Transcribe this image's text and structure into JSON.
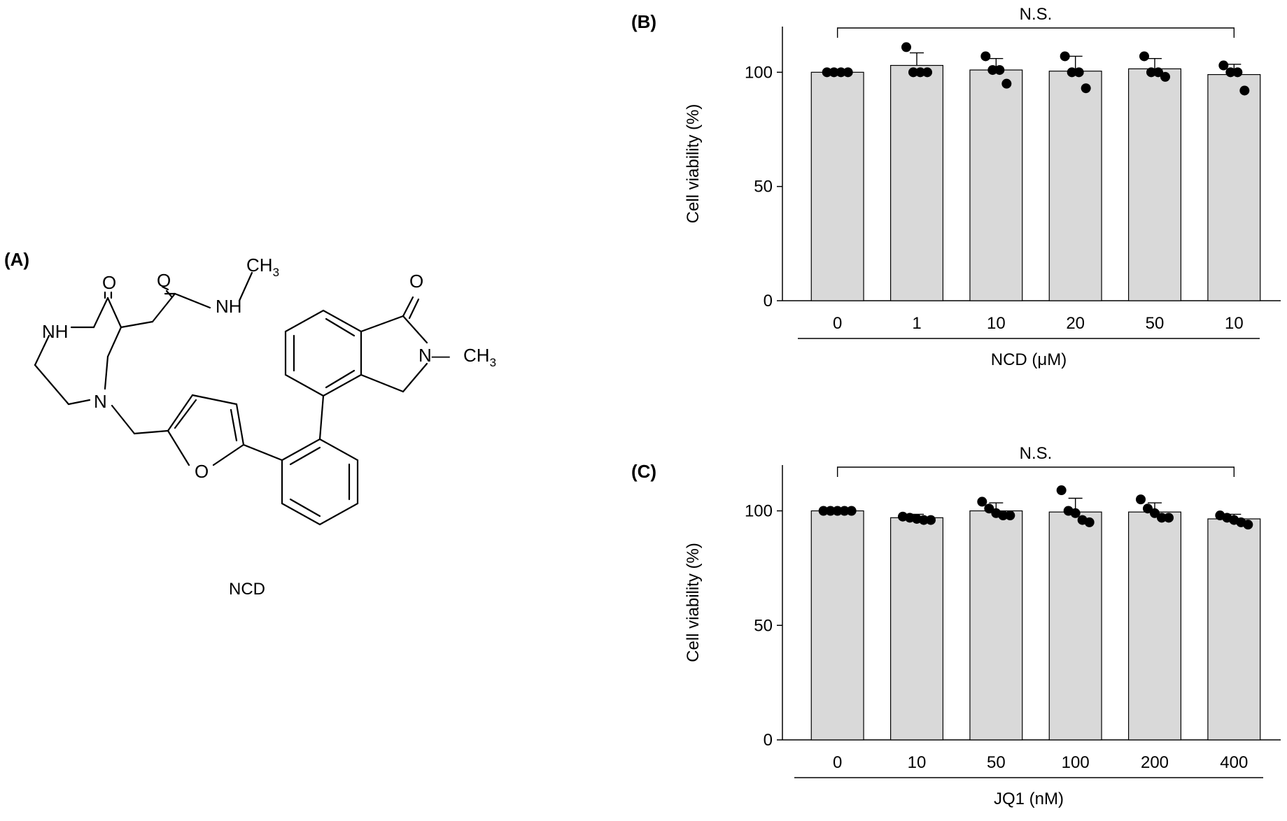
{
  "panels": {
    "A": {
      "label": "(A)"
    },
    "B": {
      "label": "(B)"
    },
    "C": {
      "label": "(C)"
    }
  },
  "structure": {
    "name": "NCD",
    "atoms": {
      "o1": "O",
      "o2": "O",
      "nh1": "NH",
      "nh2": "NH",
      "n1": "N",
      "n2": "N",
      "o_furan": "O",
      "o3": "O",
      "ch3_a": "CH",
      "ch3_a_sub": "3",
      "ch3_b": "CH",
      "ch3_b_sub": "3",
      "n_dash": "N—"
    }
  },
  "chart_data": [
    {
      "type": "bar",
      "panel": "(B)",
      "categories": [
        "0",
        "1",
        "10",
        "20",
        "50",
        "10"
      ],
      "values": [
        100,
        103,
        101,
        100.5,
        101.5,
        99
      ],
      "errors": [
        0,
        5.5,
        5,
        6.5,
        4.5,
        4.5
      ],
      "points": [
        [
          100,
          100,
          100,
          100
        ],
        [
          111,
          100,
          100,
          100
        ],
        [
          107,
          101,
          101,
          95
        ],
        [
          107,
          100,
          100,
          93
        ],
        [
          107,
          100,
          100,
          98
        ],
        [
          103,
          100,
          100,
          92
        ]
      ],
      "xlabel": "NCD (μM)",
      "ylabel": "Cell viability (%)",
      "yticks": [
        0,
        50,
        100
      ],
      "ylim": [
        0,
        120
      ],
      "significance": "N.S."
    },
    {
      "type": "bar",
      "panel": "(C)",
      "categories": [
        "0",
        "10",
        "50",
        "100",
        "200",
        "400"
      ],
      "values": [
        100,
        97,
        100,
        99.5,
        99.5,
        96.5
      ],
      "errors": [
        0,
        1.5,
        3.5,
        6,
        4,
        2
      ],
      "points": [
        [
          100,
          100,
          100,
          100,
          100
        ],
        [
          97.5,
          97,
          96.5,
          96,
          96
        ],
        [
          104,
          101,
          99,
          98,
          98
        ],
        [
          109,
          100,
          99,
          96,
          95
        ],
        [
          105,
          101,
          99,
          97,
          97
        ],
        [
          98,
          97,
          96,
          95,
          94
        ]
      ],
      "xlabel": "JQ1 (nM)",
      "ylabel": "Cell viability (%)",
      "yticks": [
        0,
        50,
        100
      ],
      "ylim": [
        0,
        120
      ],
      "significance": "N.S."
    }
  ]
}
